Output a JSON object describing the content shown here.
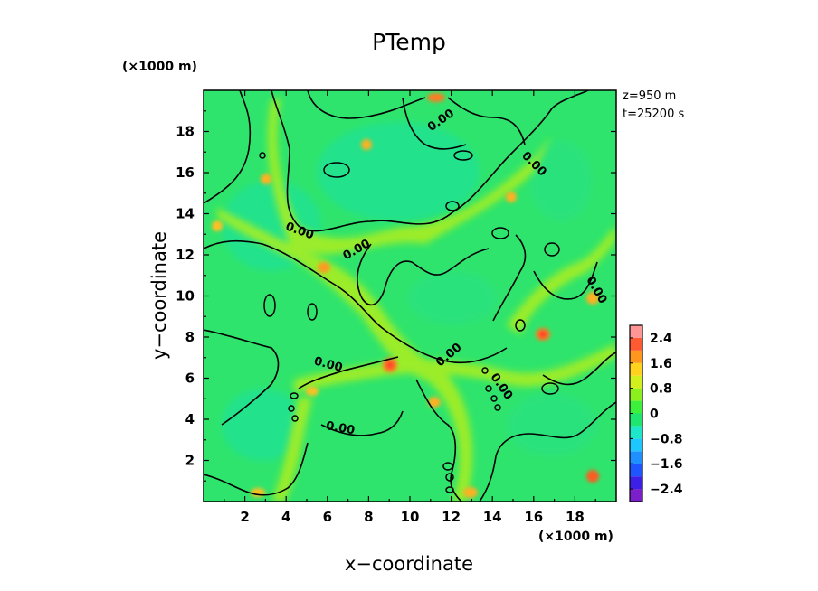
{
  "chart_data": {
    "type": "heatmap",
    "title": "PTemp",
    "xlabel": "x−coordinate",
    "ylabel": "y−coordinate",
    "x_unit": "(×1000 m)",
    "y_unit": "(×1000 m)",
    "xlim": [
      0,
      20
    ],
    "ylim": [
      0,
      20
    ],
    "x_ticks": [
      "2",
      "4",
      "6",
      "8",
      "10",
      "12",
      "14",
      "16",
      "18"
    ],
    "y_ticks": [
      "2",
      "4",
      "6",
      "8",
      "10",
      "12",
      "14",
      "16",
      "18"
    ],
    "annotations": [
      "z=950 m",
      "t=25200 s"
    ],
    "contour_level": 0.0,
    "contour_labels": [
      "0.00",
      "0.00",
      "0.00",
      "0.00",
      "0.00",
      "0.00",
      "0.00",
      "0.00",
      "0.00"
    ],
    "contour_label_positions": [
      [
        11.6,
        18.4
      ],
      [
        15.9,
        16.3
      ],
      [
        4.6,
        13.0
      ],
      [
        7.5,
        12.1
      ],
      [
        18.9,
        10.2
      ],
      [
        12.0,
        7.0
      ],
      [
        6.0,
        6.5
      ],
      [
        14.3,
        5.5
      ],
      [
        6.6,
        3.4
      ]
    ],
    "colorbar": {
      "ticks": [
        "2.4",
        "1.6",
        "0.8",
        "0",
        "−0.8",
        "−1.6",
        "−2.4"
      ],
      "tick_values": [
        2.4,
        1.6,
        0.8,
        0,
        -0.8,
        -1.6,
        -2.4
      ],
      "range": [
        -2.8,
        2.8
      ],
      "levels": [
        {
          "lo": -2.8,
          "hi": -2.4,
          "color": "#7a1fc9"
        },
        {
          "lo": -2.4,
          "hi": -2.0,
          "color": "#3c20e6"
        },
        {
          "lo": -2.0,
          "hi": -1.6,
          "color": "#1e55ff"
        },
        {
          "lo": -1.6,
          "hi": -1.2,
          "color": "#1e90ff"
        },
        {
          "lo": -1.2,
          "hi": -0.8,
          "color": "#1ec8ff"
        },
        {
          "lo": -0.8,
          "hi": -0.4,
          "color": "#1ee6c8"
        },
        {
          "lo": -0.4,
          "hi": 0.0,
          "color": "#1ee66e"
        },
        {
          "lo": 0.0,
          "hi": 0.4,
          "color": "#3cf03c"
        },
        {
          "lo": 0.4,
          "hi": 0.8,
          "color": "#8cf01e"
        },
        {
          "lo": 0.8,
          "hi": 1.2,
          "color": "#d2f01e"
        },
        {
          "lo": 1.2,
          "hi": 1.6,
          "color": "#ffd21e"
        },
        {
          "lo": 1.6,
          "hi": 2.0,
          "color": "#ff961e"
        },
        {
          "lo": 2.0,
          "hi": 2.4,
          "color": "#ff5a32"
        },
        {
          "lo": 2.4,
          "hi": 2.8,
          "color": "#ff9696"
        }
      ]
    },
    "grid": false,
    "legend": "colorbar-right"
  }
}
